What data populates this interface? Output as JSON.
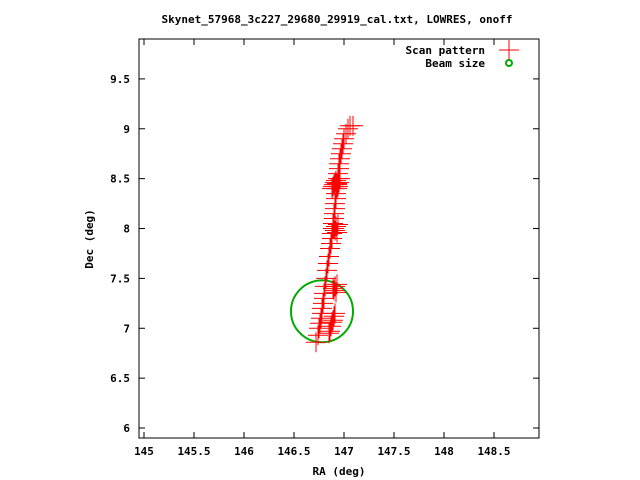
{
  "chart_data": {
    "type": "scatter",
    "title": "Skynet_57968_3c227_29680_29919_cal.txt, LOWRES, onoff",
    "xlabel": "RA (deg)",
    "ylabel": "Dec (deg)",
    "xlim": [
      144.95,
      148.95
    ],
    "ylim": [
      5.9,
      9.9
    ],
    "xticks": [
      145,
      145.5,
      146,
      146.5,
      147,
      147.5,
      148,
      148.5
    ],
    "xtick_labels": [
      "145",
      "145.5",
      "146",
      "146.5",
      "147",
      "147.5",
      "148",
      "148.5"
    ],
    "yticks": [
      6,
      6.5,
      7,
      7.5,
      8,
      8.5,
      9,
      9.5
    ],
    "ytick_labels": [
      "6",
      "6.5",
      "7",
      "7.5",
      "8",
      "8.5",
      "9",
      "9.5"
    ],
    "grid": false,
    "legend_position": "top-right",
    "series": [
      {
        "name": "Scan pattern",
        "marker": "plus",
        "color": "#ff0000",
        "x": [
          146.72,
          146.74,
          146.75,
          146.76,
          146.77,
          146.78,
          146.78,
          146.79,
          146.8,
          146.8,
          146.81,
          146.82,
          146.83,
          146.84,
          146.85,
          146.86,
          146.87,
          146.88,
          146.88,
          146.89,
          146.89,
          146.9,
          146.9,
          146.91,
          146.91,
          146.92,
          146.92,
          146.93,
          146.93,
          146.94,
          146.94,
          146.95,
          146.95,
          146.96,
          146.97,
          146.98,
          146.99,
          147.0,
          147.02,
          147.04,
          147.06,
          147.09,
          146.88,
          146.89,
          146.9,
          146.91,
          146.92,
          146.93,
          146.94,
          146.95,
          146.96,
          146.9,
          146.91,
          146.92,
          146.93,
          146.94,
          146.89,
          146.9,
          146.91,
          146.92,
          146.93,
          146.85,
          146.86,
          146.87,
          146.88,
          146.89,
          146.9,
          146.91
        ],
        "y": [
          6.86,
          6.93,
          7.0,
          7.05,
          7.1,
          7.15,
          7.2,
          7.25,
          7.3,
          7.35,
          7.42,
          7.5,
          7.58,
          7.65,
          7.72,
          7.8,
          7.85,
          7.9,
          7.95,
          8.0,
          8.05,
          8.1,
          8.15,
          8.2,
          8.25,
          8.3,
          8.35,
          8.4,
          8.45,
          8.5,
          8.55,
          8.6,
          8.65,
          8.7,
          8.75,
          8.8,
          8.85,
          8.9,
          8.95,
          9.0,
          9.03,
          9.03,
          8.4,
          8.42,
          8.44,
          8.46,
          8.48,
          8.44,
          8.42,
          8.46,
          8.5,
          8.0,
          7.98,
          8.02,
          7.96,
          8.04,
          7.4,
          7.38,
          7.42,
          7.36,
          7.44,
          6.95,
          6.97,
          7.02,
          7.06,
          7.08,
          7.12,
          7.15
        ]
      },
      {
        "name": "Beam size",
        "marker": "circle",
        "color": "#00aa00",
        "center": [
          146.78,
          7.17
        ],
        "radius_deg": 0.31
      }
    ]
  }
}
